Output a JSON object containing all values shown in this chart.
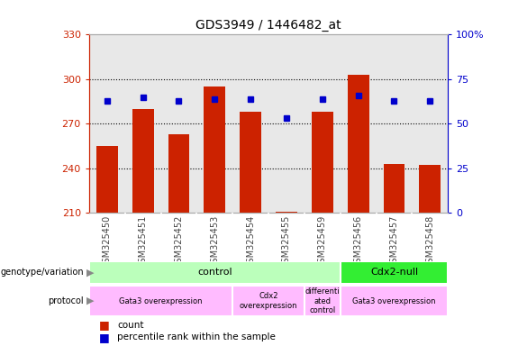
{
  "title": "GDS3949 / 1446482_at",
  "samples": [
    "GSM325450",
    "GSM325451",
    "GSM325452",
    "GSM325453",
    "GSM325454",
    "GSM325455",
    "GSM325459",
    "GSM325456",
    "GSM325457",
    "GSM325458"
  ],
  "counts": [
    255,
    280,
    263,
    295,
    278,
    211,
    278,
    303,
    243,
    242
  ],
  "percentiles": [
    63,
    65,
    63,
    64,
    64,
    53,
    64,
    66,
    63,
    63
  ],
  "ylim_left": [
    210,
    330
  ],
  "ylim_right": [
    0,
    100
  ],
  "yticks_left": [
    210,
    240,
    270,
    300,
    330
  ],
  "yticks_right": [
    0,
    25,
    50,
    75,
    100
  ],
  "bar_color": "#cc2200",
  "dot_color": "#0000cc",
  "geno_groups": [
    {
      "label": "control",
      "start": 0,
      "end": 7,
      "color": "#bbffbb"
    },
    {
      "label": "Cdx2-null",
      "start": 7,
      "end": 10,
      "color": "#33ee33"
    }
  ],
  "proto_groups": [
    {
      "label": "Gata3 overexpression",
      "start": 0,
      "end": 4,
      "color": "#ffbbff"
    },
    {
      "label": "Cdx2\noverexpression",
      "start": 4,
      "end": 6,
      "color": "#ffbbff"
    },
    {
      "label": "differenti\nated\ncontrol",
      "start": 6,
      "end": 7,
      "color": "#ffbbff"
    },
    {
      "label": "Gata3 overexpression",
      "start": 7,
      "end": 10,
      "color": "#ffbbff"
    }
  ],
  "left_axis_color": "#cc2200",
  "right_axis_color": "#0000cc",
  "tick_label_color": "#444444",
  "plot_bg_color": "#e8e8e8",
  "fig_bg_color": "#ffffff"
}
